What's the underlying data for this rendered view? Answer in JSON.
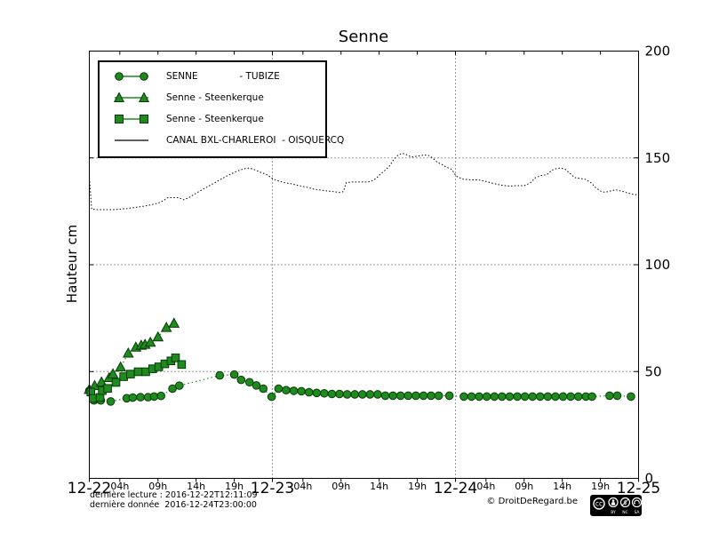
{
  "chart": {
    "title": "Senne",
    "ylabel": "Hauteur cm",
    "colors": {
      "series_green": "#1f8b1f",
      "series_green_edge": "#063a06",
      "canal_line": "#000000",
      "grid": "#3a3a3a",
      "frame": "#000000"
    }
  },
  "legend": {
    "items": [
      {
        "marker": "circle",
        "label": "SENNE              - TUBIZE"
      },
      {
        "marker": "triangle",
        "label": "Senne - Steenkerque"
      },
      {
        "marker": "square",
        "label": "Senne - Steenkerque"
      },
      {
        "marker": "line",
        "label": "CANAL BXL-CHARLEROI  - OISQUERCQ"
      }
    ]
  },
  "footer": {
    "derniere_lecture": "dernière lecture : 2016-12-22T12:11:09",
    "derniere_donnee": "dernière donnée  2016-12-24T23:00:00",
    "copyright": "© DroitDeRegard.be",
    "cc": {
      "by": "BY",
      "nc": "NC",
      "sa": "SA"
    }
  },
  "chart_data": {
    "type": "line",
    "title": "Senne",
    "ylabel": "Hauteur cm",
    "ylim": [
      0,
      200
    ],
    "xlim_hours": [
      0,
      72
    ],
    "grid": {
      "horizontal": [
        50,
        100,
        150
      ],
      "vertical_hours": [
        24,
        48
      ]
    },
    "y_ticks": [
      0,
      50,
      100,
      150,
      200
    ],
    "x_day_ticks": [
      {
        "hour": 0,
        "label": "12-22"
      },
      {
        "hour": 24,
        "label": "12-23"
      },
      {
        "hour": 48,
        "label": "12-24"
      },
      {
        "hour": 72,
        "label": "12-25"
      }
    ],
    "x_hour_ticks": [
      {
        "hour": 4,
        "label": "04h"
      },
      {
        "hour": 9,
        "label": "09h"
      },
      {
        "hour": 14,
        "label": "14h"
      },
      {
        "hour": 19,
        "label": "19h"
      },
      {
        "hour": 28,
        "label": "04h"
      },
      {
        "hour": 33,
        "label": "09h"
      },
      {
        "hour": 38,
        "label": "14h"
      },
      {
        "hour": 43,
        "label": "19h"
      },
      {
        "hour": 52,
        "label": "04h"
      },
      {
        "hour": 57,
        "label": "09h"
      },
      {
        "hour": 62,
        "label": "14h"
      },
      {
        "hour": 67,
        "label": "19h"
      }
    ],
    "series": [
      {
        "name": "CANAL BXL-CHARLEROI - OISQUERCQ",
        "marker": "none",
        "style": "dotted",
        "color": "#000000",
        "points": [
          [
            0.05,
            139
          ],
          [
            0.3,
            126
          ],
          [
            1,
            125.8
          ],
          [
            2,
            125.8
          ],
          [
            3,
            125.8
          ],
          [
            4,
            126
          ],
          [
            5,
            126.3
          ],
          [
            6,
            126.8
          ],
          [
            7,
            127.3
          ],
          [
            8,
            128
          ],
          [
            9,
            128.8
          ],
          [
            9.7,
            130
          ],
          [
            10.3,
            131.4
          ],
          [
            11,
            131.4
          ],
          [
            11.7,
            131.4
          ],
          [
            12.4,
            130.4
          ],
          [
            13,
            131.3
          ],
          [
            14,
            133.5
          ],
          [
            15,
            135.5
          ],
          [
            16,
            137.5
          ],
          [
            17,
            139.5
          ],
          [
            18,
            141.5
          ],
          [
            19,
            143.2
          ],
          [
            19.7,
            144.3
          ],
          [
            20.4,
            145
          ],
          [
            21,
            145.3
          ],
          [
            21.8,
            144.3
          ],
          [
            22.5,
            143.2
          ],
          [
            23.3,
            142.1
          ],
          [
            24.1,
            140.1
          ],
          [
            25,
            139
          ],
          [
            25.7,
            138.3
          ],
          [
            26.5,
            137.9
          ],
          [
            27.5,
            137
          ],
          [
            28.5,
            136.3
          ],
          [
            29.3,
            135.5
          ],
          [
            30,
            135.1
          ],
          [
            31,
            134.6
          ],
          [
            32,
            134.2
          ],
          [
            32.8,
            133.8
          ],
          [
            33.3,
            134.2
          ],
          [
            33.7,
            138.5
          ],
          [
            34.5,
            138.7
          ],
          [
            35.5,
            138.7
          ],
          [
            36.5,
            138.7
          ],
          [
            37.2,
            139.5
          ],
          [
            37.6,
            140.4
          ],
          [
            38.1,
            142.2
          ],
          [
            38.7,
            144
          ],
          [
            39.3,
            146
          ],
          [
            39.9,
            149.2
          ],
          [
            40.4,
            151.1
          ],
          [
            41,
            152.2
          ],
          [
            41.6,
            151.5
          ],
          [
            42.2,
            150.4
          ],
          [
            43,
            150.8
          ],
          [
            43.8,
            151.3
          ],
          [
            44.4,
            151.3
          ],
          [
            45,
            150
          ],
          [
            45.6,
            148
          ],
          [
            46.2,
            147
          ],
          [
            46.8,
            145.7
          ],
          [
            47.5,
            144.6
          ],
          [
            48.1,
            141.4
          ],
          [
            49,
            140
          ],
          [
            50,
            139.7
          ],
          [
            51,
            139.7
          ],
          [
            52,
            139
          ],
          [
            53,
            138
          ],
          [
            54,
            137.2
          ],
          [
            55,
            136.8
          ],
          [
            56,
            137
          ],
          [
            57,
            137
          ],
          [
            57.8,
            138.3
          ],
          [
            58.5,
            140.8
          ],
          [
            59.3,
            141.8
          ],
          [
            60,
            142.2
          ],
          [
            60.6,
            144.2
          ],
          [
            61.2,
            145
          ],
          [
            61.8,
            145.3
          ],
          [
            62.4,
            144.6
          ],
          [
            63,
            142.8
          ],
          [
            63.6,
            140.8
          ],
          [
            64.3,
            140.4
          ],
          [
            65,
            140
          ],
          [
            65.8,
            138.3
          ],
          [
            66.3,
            136.3
          ],
          [
            67,
            134.5
          ],
          [
            67.6,
            133.9
          ],
          [
            68.3,
            134.5
          ],
          [
            69,
            135.1
          ],
          [
            70,
            134.2
          ],
          [
            70.6,
            133.5
          ],
          [
            71.2,
            133
          ],
          [
            71.7,
            132.8
          ],
          [
            72,
            132.2
          ]
        ]
      },
      {
        "name": "SENNE - TUBIZE",
        "marker": "circle",
        "style": "dotted",
        "color": "#1f8b1f",
        "points": [
          [
            0,
            41
          ],
          [
            0.6,
            36.5
          ],
          [
            1.5,
            36.5
          ],
          [
            2.8,
            36
          ],
          [
            4.9,
            37.5
          ],
          [
            5.7,
            37.8
          ],
          [
            6.7,
            38
          ],
          [
            7.7,
            38
          ],
          [
            8.5,
            38.3
          ],
          [
            9.4,
            38.6
          ],
          [
            10.9,
            42
          ],
          [
            11.8,
            43.4
          ],
          [
            17.1,
            48.2
          ],
          [
            19,
            48.6
          ],
          [
            19.9,
            46.1
          ],
          [
            21,
            45
          ],
          [
            21.9,
            43.5
          ],
          [
            22.8,
            42
          ],
          [
            23.9,
            38.2
          ],
          [
            24.8,
            42
          ],
          [
            25.8,
            41.3
          ],
          [
            26.8,
            41
          ],
          [
            27.8,
            40.8
          ],
          [
            28.8,
            40.3
          ],
          [
            29.8,
            40
          ],
          [
            30.8,
            39.8
          ],
          [
            31.8,
            39.5
          ],
          [
            32.8,
            39.5
          ],
          [
            33.8,
            39.3
          ],
          [
            34.8,
            39.3
          ],
          [
            35.8,
            39.3
          ],
          [
            36.8,
            39.3
          ],
          [
            37.8,
            39.3
          ],
          [
            38.8,
            38.7
          ],
          [
            39.8,
            38.7
          ],
          [
            40.8,
            38.7
          ],
          [
            41.8,
            38.7
          ],
          [
            42.8,
            38.7
          ],
          [
            43.8,
            38.7
          ],
          [
            44.8,
            38.7
          ],
          [
            45.8,
            38.7
          ],
          [
            47.2,
            38.7
          ],
          [
            49.1,
            38.3
          ],
          [
            50.1,
            38.3
          ],
          [
            51.1,
            38.3
          ],
          [
            52.1,
            38.3
          ],
          [
            53.1,
            38.3
          ],
          [
            54.1,
            38.3
          ],
          [
            55.1,
            38.3
          ],
          [
            56.1,
            38.3
          ],
          [
            57.1,
            38.3
          ],
          [
            58.1,
            38.3
          ],
          [
            59.1,
            38.3
          ],
          [
            60.1,
            38.3
          ],
          [
            61.1,
            38.3
          ],
          [
            62.1,
            38.3
          ],
          [
            63.1,
            38.3
          ],
          [
            64.1,
            38.3
          ],
          [
            65.1,
            38.3
          ],
          [
            65.9,
            38.3
          ],
          [
            68.2,
            38.7
          ],
          [
            69.2,
            38.7
          ],
          [
            71,
            38.3
          ]
        ]
      },
      {
        "name": "Senne - Steenkerque (triangles)",
        "marker": "triangle",
        "style": "dotted",
        "color": "#1f8b1f",
        "points": [
          [
            0,
            41.5
          ],
          [
            0.7,
            43.3
          ],
          [
            1.6,
            45
          ],
          [
            2.6,
            47
          ],
          [
            3.1,
            48.8
          ],
          [
            4.1,
            52
          ],
          [
            5.1,
            58.5
          ],
          [
            6.1,
            61.3
          ],
          [
            6.8,
            62.2
          ],
          [
            7.3,
            62.6
          ],
          [
            8,
            63.6
          ],
          [
            9,
            66.1
          ],
          [
            10.1,
            70.5
          ],
          [
            11.1,
            72.5
          ]
        ]
      },
      {
        "name": "Senne - Steenkerque (squares)",
        "marker": "square",
        "style": "dotted",
        "color": "#1f8b1f",
        "points": [
          [
            0.2,
            40.4
          ],
          [
            0.5,
            37.4
          ],
          [
            1.4,
            37.9
          ],
          [
            1.7,
            41.1
          ],
          [
            2.4,
            42.1
          ],
          [
            3.5,
            44.9
          ],
          [
            4.5,
            47.6
          ],
          [
            5.4,
            48.8
          ],
          [
            6.4,
            49.9
          ],
          [
            7.4,
            49.9
          ],
          [
            8.3,
            51.3
          ],
          [
            9.1,
            52.2
          ],
          [
            9.9,
            53.6
          ],
          [
            10.7,
            55
          ],
          [
            11.3,
            56.4
          ],
          [
            12.1,
            53.3
          ]
        ]
      }
    ]
  }
}
